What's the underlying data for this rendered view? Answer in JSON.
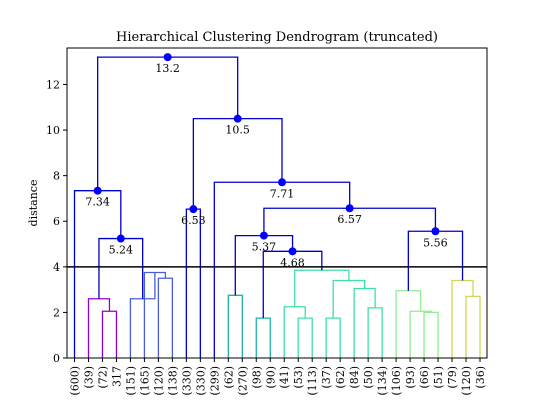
{
  "chart_data": {
    "type": "dendrogram",
    "title": "Hierarchical Clustering Dendrogram (truncated)",
    "xlabel": "",
    "ylabel": "distance",
    "ylim": [
      0,
      13.6
    ],
    "yticks": [
      0,
      2,
      4,
      6,
      8,
      10,
      12
    ],
    "threshold": 4,
    "grid": false,
    "leaves": [
      "(600)",
      "(39)",
      "(72)",
      "317",
      "(151)",
      "(165)",
      "(120)",
      "(138)",
      "(330)",
      "(330)",
      "(299)",
      "(62)",
      "(270)",
      "(98)",
      "(90)",
      "(41)",
      "(53)",
      "(113)",
      "(37)",
      "(62)",
      "(84)",
      "(50)",
      "(134)",
      "(106)",
      "(93)",
      "(66)",
      "(51)",
      "(79)",
      "(120)",
      "(36)"
    ],
    "annotated_merges": [
      "13.2",
      "10.5",
      "7.34",
      "7.71",
      "6.57",
      "5.24",
      "6.53",
      "5.37",
      "5.56",
      "4.68"
    ],
    "merges": [
      {
        "id": "m1",
        "left": 2,
        "right": 3,
        "height": 2.05,
        "color": "#9400d3"
      },
      {
        "id": "m2",
        "left": 1,
        "right": "m1",
        "height": 2.6,
        "color": "#9400d3"
      },
      {
        "id": "m3",
        "left": 6,
        "right": 7,
        "height": 3.5,
        "color": "#4a5ed8"
      },
      {
        "id": "m4",
        "left": 5,
        "right": "m3",
        "height": 3.75,
        "color": "#4a5ed8"
      },
      {
        "id": "m5",
        "left": 4,
        "right": "m4",
        "height": 2.6,
        "color": "#4a5ed8"
      },
      {
        "id": "m6",
        "left": "m2",
        "right": "m5",
        "height": 5.24,
        "color": "#0000cd",
        "label": "5.24"
      },
      {
        "id": "m7",
        "left": 0,
        "right": "m6",
        "height": 7.34,
        "color": "#0000cd",
        "label": "7.34"
      },
      {
        "id": "m8",
        "left": 8,
        "right": 9,
        "height": 6.53,
        "color": "#0000cd",
        "label": "6.53"
      },
      {
        "id": "m9",
        "left": 13,
        "right": 14,
        "height": 1.75,
        "color": "#20b2aa"
      },
      {
        "id": "m10",
        "left": 11,
        "right": 12,
        "height": 2.75,
        "color": "#20b2aa"
      },
      {
        "id": "m11",
        "left": 16,
        "right": 17,
        "height": 1.75,
        "color": "#40e0a0"
      },
      {
        "id": "m12",
        "left": 15,
        "right": "m11",
        "height": 2.25,
        "color": "#40e0a0"
      },
      {
        "id": "m13",
        "left": 18,
        "right": 19,
        "height": 1.75,
        "color": "#40e0a0"
      },
      {
        "id": "m14",
        "left": 21,
        "right": 22,
        "height": 2.2,
        "color": "#40e0a0"
      },
      {
        "id": "m15",
        "left": 20,
        "right": "m14",
        "height": 3.05,
        "color": "#40e0a0"
      },
      {
        "id": "m16",
        "left": "m13",
        "right": "m15",
        "height": 3.4,
        "color": "#40e0a0"
      },
      {
        "id": "m17",
        "left": "m12",
        "right": "m16",
        "height": 3.85,
        "color": "#40e0a0"
      },
      {
        "id": "m18",
        "left": "m9",
        "right": "m17",
        "height": 4.68,
        "color": "#0000cd",
        "label": "4.68"
      },
      {
        "id": "m19",
        "left": "m10",
        "right": "m18",
        "height": 5.37,
        "color": "#0000cd",
        "label": "5.37"
      },
      {
        "id": "m20",
        "left": 25,
        "right": 26,
        "height": 2.0,
        "color": "#90ee90"
      },
      {
        "id": "m21",
        "left": 24,
        "right": "m20",
        "height": 2.05,
        "color": "#90ee90"
      },
      {
        "id": "m22",
        "left": 23,
        "right": "m21",
        "height": 2.95,
        "color": "#90ee90"
      },
      {
        "id": "m23",
        "left": 28,
        "right": 29,
        "height": 2.7,
        "color": "#d4d45a"
      },
      {
        "id": "m24",
        "left": 27,
        "right": "m23",
        "height": 3.4,
        "color": "#d4d45a"
      },
      {
        "id": "m25",
        "left": "m22",
        "right": "m24",
        "height": 5.56,
        "color": "#0000cd",
        "label": "5.56"
      },
      {
        "id": "m26",
        "left": "m19",
        "right": "m25",
        "height": 6.57,
        "color": "#0000cd",
        "label": "6.57"
      },
      {
        "id": "m27",
        "left": 10,
        "right": "m26",
        "height": 7.71,
        "color": "#0000cd",
        "label": "7.71"
      },
      {
        "id": "m28",
        "left": "m8",
        "right": "m27",
        "height": 10.5,
        "color": "#0000cd",
        "label": "10.5"
      },
      {
        "id": "m29",
        "left": "m7",
        "right": "m28",
        "height": 13.2,
        "color": "#0000cd",
        "label": "13.2"
      }
    ]
  }
}
